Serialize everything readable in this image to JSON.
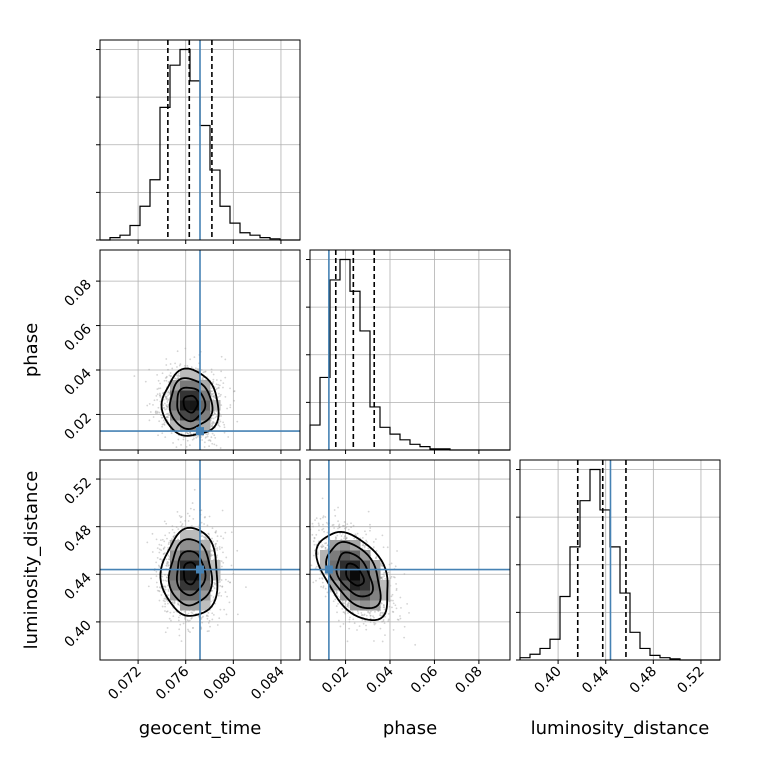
{
  "chart_data": {
    "type": "corner",
    "parameters": [
      "geocent_time",
      "phase",
      "luminosity_distance"
    ],
    "truth": {
      "geocent_time": 0.0772,
      "phase": 0.0125,
      "luminosity_distance": 0.444
    },
    "colors": {
      "truth": "#4682b4",
      "hist": "#000000",
      "grid": "#b0b0b0",
      "points": "#a0a0a0"
    },
    "grid": true,
    "ranges": {
      "geocent_time": [
        0.0688,
        0.0856
      ],
      "phase": [
        0.004,
        0.094
      ],
      "luminosity_distance": [
        0.368,
        0.536
      ]
    },
    "ticks": {
      "geocent_time": [
        "0.072",
        "0.076",
        "0.080",
        "0.084"
      ],
      "phase": [
        "0.02",
        "0.04",
        "0.06",
        "0.08"
      ],
      "luminosity_distance": [
        "0.40",
        "0.44",
        "0.48",
        "0.52"
      ]
    },
    "histograms": {
      "geocent_time": {
        "bin_width": 0.00084,
        "counts": [
          0,
          2,
          4,
          12,
          28,
          50,
          110,
          145,
          158,
          132,
          95,
          58,
          28,
          14,
          6,
          4,
          2,
          1,
          0,
          0
        ],
        "quantiles": [
          0.0745,
          0.0763,
          0.0782
        ]
      },
      "phase": {
        "bin_width": 0.0045,
        "counts": [
          22,
          64,
          150,
          168,
          140,
          105,
          38,
          20,
          14,
          9,
          5,
          3,
          1,
          1,
          0,
          0,
          0,
          0,
          0,
          0
        ],
        "quantiles": [
          0.0156,
          0.0235,
          0.0329
        ]
      },
      "luminosity_distance": {
        "bin_width": 0.0084,
        "counts": [
          2,
          5,
          10,
          18,
          55,
          98,
          138,
          165,
          130,
          98,
          58,
          24,
          10,
          4,
          2,
          1,
          0,
          0,
          0,
          0
        ],
        "quantiles": [
          0.4165,
          0.4375,
          0.457
        ]
      }
    },
    "pairs": [
      {
        "x": "geocent_time",
        "y": "phase",
        "mean": [
          0.0764,
          0.0248
        ],
        "sigma": [
          0.00118,
          0.0075
        ],
        "rho": -0.05,
        "contours": [
          0.5,
          1.0,
          1.5,
          2.0
        ]
      },
      {
        "x": "geocent_time",
        "y": "luminosity_distance",
        "mean": [
          0.0764,
          0.441
        ],
        "sigma": [
          0.00118,
          0.0185
        ],
        "rho": 0.0,
        "contours": [
          0.5,
          1.0,
          1.5,
          2.0
        ]
      },
      {
        "x": "phase",
        "y": "luminosity_distance",
        "mean": [
          0.024,
          0.4395
        ],
        "sigma": [
          0.008,
          0.0185
        ],
        "rho": -0.45,
        "contours": [
          0.5,
          1.0,
          1.5,
          2.0
        ]
      }
    ]
  }
}
